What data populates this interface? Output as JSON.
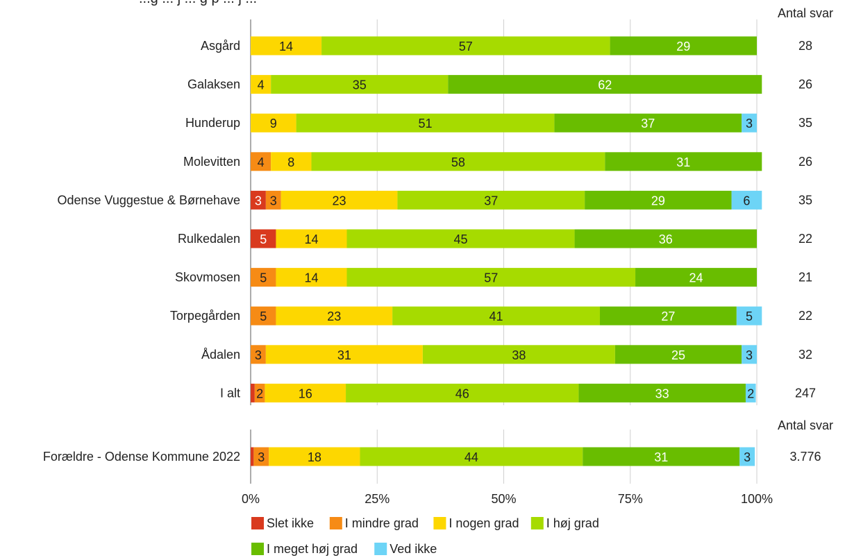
{
  "chart_data": {
    "type": "bar",
    "orientation": "horizontal",
    "stacked": true,
    "normalized_percent": true,
    "title_partial": "...g ... j ... g p ... j ...",
    "count_header": "Antal svar",
    "series": [
      {
        "name": "Slet ikke",
        "color": "#d93a1e"
      },
      {
        "name": "I mindre grad",
        "color": "#f68b15"
      },
      {
        "name": "I nogen grad",
        "color": "#fdd700"
      },
      {
        "name": "I høj grad",
        "color": "#a6db00"
      },
      {
        "name": "I meget høj grad",
        "color": "#69bd00"
      },
      {
        "name": "Ved ikke",
        "color": "#6dd4f6"
      }
    ],
    "groups": [
      {
        "rows": [
          {
            "label": "Asgård",
            "values": [
              0,
              0,
              14,
              57,
              29,
              0
            ],
            "labels": [
              "",
              "",
              "14",
              "57",
              "29",
              ""
            ],
            "n": "28"
          },
          {
            "label": "Galaksen",
            "values": [
              0,
              0,
              4,
              35,
              62,
              0
            ],
            "labels": [
              "",
              "",
              "4",
              "35",
              "62",
              ""
            ],
            "n": "26"
          },
          {
            "label": "Hunderup",
            "values": [
              0,
              0,
              9,
              51,
              37,
              3
            ],
            "labels": [
              "",
              "",
              "9",
              "51",
              "37",
              "3"
            ],
            "n": "35"
          },
          {
            "label": "Molevitten",
            "values": [
              0,
              4,
              8,
              58,
              31,
              0
            ],
            "labels": [
              "",
              "4",
              "8",
              "58",
              "31",
              ""
            ],
            "n": "26"
          },
          {
            "label": "Odense Vuggestue & Børnehave",
            "values": [
              3,
              3,
              23,
              37,
              29,
              6
            ],
            "labels": [
              "3",
              "3",
              "23",
              "37",
              "29",
              "6"
            ],
            "n": "35"
          },
          {
            "label": "Rulkedalen",
            "values": [
              5,
              0,
              14,
              45,
              36,
              0
            ],
            "labels": [
              "5",
              "",
              "14",
              "45",
              "36",
              ""
            ],
            "n": "22"
          },
          {
            "label": "Skovmosen",
            "values": [
              0,
              5,
              14,
              57,
              24,
              0
            ],
            "labels": [
              "",
              "5",
              "14",
              "57",
              "24",
              ""
            ],
            "n": "21"
          },
          {
            "label": "Torpegården",
            "values": [
              0,
              5,
              23,
              41,
              27,
              5
            ],
            "labels": [
              "",
              "5",
              "23",
              "41",
              "27",
              "5"
            ],
            "n": "22"
          },
          {
            "label": "Ådalen",
            "values": [
              0,
              3,
              31,
              38,
              25,
              3
            ],
            "labels": [
              "",
              "3",
              "31",
              "38",
              "25",
              "3"
            ],
            "n": "32"
          },
          {
            "label": "I alt",
            "values": [
              0.8,
              2,
              16,
              46,
              33,
              2
            ],
            "labels": [
              "",
              "2",
              "16",
              "46",
              "33",
              "2"
            ],
            "n": "247"
          }
        ]
      },
      {
        "count_header": "Antal svar",
        "rows": [
          {
            "label": "Forældre - Odense Kommune 2022",
            "values": [
              0.6,
              3,
              18,
              44,
              31,
              3
            ],
            "labels": [
              "",
              "3",
              "18",
              "44",
              "31",
              "3"
            ],
            "n": "3.776"
          }
        ]
      }
    ],
    "x_ticks": [
      "0%",
      "25%",
      "50%",
      "75%",
      "100%"
    ],
    "xlim": [
      0,
      100
    ],
    "grid": true,
    "legend_position": "bottom"
  }
}
